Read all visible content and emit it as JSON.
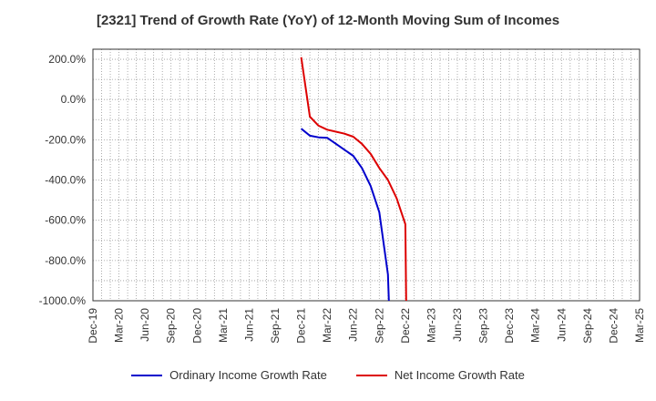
{
  "chart_data": {
    "type": "line",
    "title": "[2321]  Trend of Growth Rate (YoY) of 12-Month Moving Sum of Incomes",
    "x_ticks": [
      "Dec-19",
      "Mar-20",
      "Jun-20",
      "Sep-20",
      "Dec-20",
      "Mar-21",
      "Jun-21",
      "Sep-21",
      "Dec-21",
      "Mar-22",
      "Jun-22",
      "Sep-22",
      "Dec-22",
      "Mar-23",
      "Jun-23",
      "Sep-23",
      "Dec-23",
      "Mar-24",
      "Jun-24",
      "Sep-24",
      "Dec-24",
      "Mar-25"
    ],
    "y_ticks": [
      200,
      0,
      -200,
      -400,
      -600,
      -800,
      -1000
    ],
    "y_tick_labels": [
      "200.0%",
      "0.0%",
      "-200.0%",
      "-400.0%",
      "-600.0%",
      "-800.0%",
      "-1000.0%"
    ],
    "ylim": [
      -1000,
      250
    ],
    "grid": true,
    "legend_position": "bottom",
    "series": [
      {
        "name": "Ordinary Income Growth Rate",
        "color": "#0000cc",
        "points": [
          [
            "Dec-21",
            -145
          ],
          [
            "Jan-22",
            -180
          ],
          [
            "Feb-22",
            -188
          ],
          [
            "Mar-22",
            -190
          ],
          [
            "Apr-22",
            -220
          ],
          [
            "May-22",
            -250
          ],
          [
            "Jun-22",
            -280
          ],
          [
            "Jul-22",
            -340
          ],
          [
            "Aug-22",
            -430
          ],
          [
            "Sep-22",
            -560
          ],
          [
            "Oct-22",
            -870
          ],
          [
            "Oct-22 end",
            -1000
          ]
        ]
      },
      {
        "name": "Net Income Growth Rate",
        "color": "#dd0000",
        "points": [
          [
            "Dec-21",
            210
          ],
          [
            "Jan-22",
            -85
          ],
          [
            "Feb-22",
            -130
          ],
          [
            "Mar-22",
            -150
          ],
          [
            "Apr-22",
            -160
          ],
          [
            "May-22",
            -170
          ],
          [
            "Jun-22",
            -185
          ],
          [
            "Jul-22",
            -220
          ],
          [
            "Aug-22",
            -270
          ],
          [
            "Sep-22",
            -340
          ],
          [
            "Oct-22",
            -400
          ],
          [
            "Nov-22",
            -490
          ],
          [
            "Dec-22",
            -620
          ],
          [
            "Dec-22 end",
            -1000
          ]
        ]
      }
    ]
  }
}
